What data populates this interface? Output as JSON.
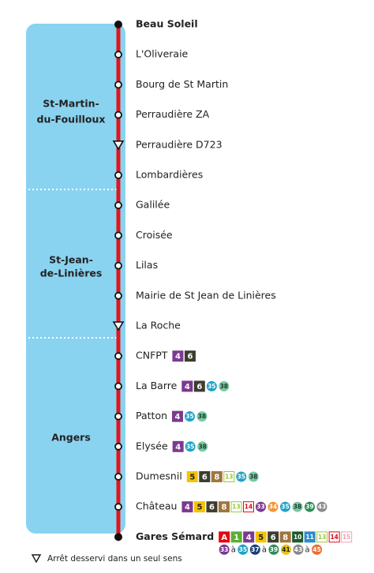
{
  "zones": [
    {
      "lines": [
        "St-Martin-",
        "du-Fouilloux"
      ]
    },
    {
      "lines": [
        "St-Jean-",
        "de-Linières"
      ]
    },
    {
      "lines": [
        "Angers"
      ]
    }
  ],
  "stops": [
    {
      "name": "Beau Soleil",
      "marker": "terminus",
      "bold": true,
      "connections": []
    },
    {
      "name": "L'Oliveraie",
      "marker": "stop",
      "connections": []
    },
    {
      "name": "Bourg de St Martin",
      "marker": "stop",
      "connections": []
    },
    {
      "name": "Perraudière ZA",
      "marker": "stop",
      "connections": []
    },
    {
      "name": "Perraudière D723",
      "marker": "oneway",
      "connections": []
    },
    {
      "name": "Lombardières",
      "marker": "stop",
      "connections": []
    },
    {
      "name": "Galilée",
      "marker": "stop",
      "connections": []
    },
    {
      "name": "Croisée",
      "marker": "stop",
      "connections": []
    },
    {
      "name": "Lilas",
      "marker": "stop",
      "connections": []
    },
    {
      "name": "Mairie de St Jean de Linières",
      "marker": "stop",
      "connections": []
    },
    {
      "name": "La Roche",
      "marker": "oneway",
      "connections": []
    },
    {
      "name": "CNFPT",
      "marker": "stop",
      "connections": [
        [
          {
            "label": "4",
            "shape": "square",
            "color": "#7a3a8f"
          },
          {
            "label": "6",
            "shape": "square",
            "color": "#3d3d2f"
          }
        ]
      ]
    },
    {
      "name": "La Barre",
      "marker": "stop",
      "connections": [
        [
          {
            "label": "4",
            "shape": "square",
            "color": "#7a3a8f"
          },
          {
            "label": "6",
            "shape": "square",
            "color": "#3d3d2f"
          },
          {
            "label": "35",
            "shape": "circle",
            "color": "#1fa3c8"
          },
          {
            "label": "38",
            "shape": "circle",
            "color": "#7bc8a4",
            "text_color": "#1e3a2e"
          }
        ]
      ]
    },
    {
      "name": "Patton",
      "marker": "stop",
      "connections": [
        [
          {
            "label": "4",
            "shape": "square",
            "color": "#7a3a8f"
          },
          {
            "label": "35",
            "shape": "circle",
            "color": "#1fa3c8"
          },
          {
            "label": "38",
            "shape": "circle",
            "color": "#7bc8a4",
            "text_color": "#1e3a2e"
          }
        ]
      ]
    },
    {
      "name": "Elysée",
      "marker": "stop",
      "connections": [
        [
          {
            "label": "4",
            "shape": "square",
            "color": "#7a3a8f"
          },
          {
            "label": "35",
            "shape": "circle",
            "color": "#1fa3c8"
          },
          {
            "label": "38",
            "shape": "circle",
            "color": "#7bc8a4",
            "text_color": "#1e3a2e"
          }
        ]
      ]
    },
    {
      "name": "Dumesnil",
      "marker": "stop",
      "connections": [
        [
          {
            "label": "5",
            "shape": "square",
            "color": "#f5c400",
            "text_color": "#222"
          },
          {
            "label": "6",
            "shape": "square",
            "color": "#3d3d2f"
          },
          {
            "label": "8",
            "shape": "square",
            "color": "#a0753c"
          },
          {
            "label": "13",
            "shape": "outline",
            "color": "#9bc53d"
          },
          {
            "label": "35",
            "shape": "circle",
            "color": "#1fa3c8"
          },
          {
            "label": "38",
            "shape": "circle",
            "color": "#7bc8a4",
            "text_color": "#1e3a2e"
          }
        ]
      ]
    },
    {
      "name": "Château",
      "marker": "stop",
      "connections": [
        [
          {
            "label": "4",
            "shape": "square",
            "color": "#7a3a8f"
          },
          {
            "label": "5",
            "shape": "square",
            "color": "#f5c400",
            "text_color": "#222"
          },
          {
            "label": "6",
            "shape": "square",
            "color": "#3d3d2f"
          },
          {
            "label": "8",
            "shape": "square",
            "color": "#a0753c"
          },
          {
            "label": "13",
            "shape": "outline",
            "color": "#9bc53d"
          },
          {
            "label": "14",
            "shape": "outline",
            "color": "#e30613"
          },
          {
            "label": "33",
            "shape": "circle",
            "color": "#7a3a8f"
          },
          {
            "label": "34",
            "shape": "circle",
            "color": "#f29433"
          },
          {
            "label": "35",
            "shape": "circle",
            "color": "#1fa3c8"
          },
          {
            "label": "38",
            "shape": "circle",
            "color": "#7bc8a4",
            "text_color": "#1e3a2e"
          },
          {
            "label": "39",
            "shape": "circle",
            "color": "#2e8b57"
          },
          {
            "label": "43",
            "shape": "circle",
            "color": "#8a8a8a"
          }
        ]
      ]
    },
    {
      "name": "Gares Sémard",
      "marker": "terminus",
      "bold": true,
      "connections": [
        [
          {
            "label": "A",
            "shape": "square",
            "color": "#e30613"
          },
          {
            "label": "1",
            "shape": "square",
            "color": "#5aae32"
          },
          {
            "label": "4",
            "shape": "square",
            "color": "#7a3a8f"
          },
          {
            "label": "5",
            "shape": "square",
            "color": "#f5c400",
            "text_color": "#222"
          },
          {
            "label": "6",
            "shape": "square",
            "color": "#3d3d2f"
          },
          {
            "label": "8",
            "shape": "square",
            "color": "#a0753c"
          },
          {
            "label": "10",
            "shape": "square",
            "color": "#1e5a2b"
          },
          {
            "label": "11",
            "shape": "square",
            "color": "#2a8ccd"
          },
          {
            "label": "13",
            "shape": "outline",
            "color": "#9bc53d"
          },
          {
            "label": "14",
            "shape": "outline",
            "color": "#e30613"
          },
          {
            "label": "15",
            "shape": "outline",
            "color": "#f29fb0"
          }
        ],
        [
          {
            "label": "33",
            "shape": "circle",
            "color": "#7a3a8f"
          },
          {
            "label": "à",
            "shape": "text"
          },
          {
            "label": "35",
            "shape": "circle",
            "color": "#1fa3c8"
          },
          {
            "label": "37",
            "shape": "circle",
            "color": "#1b3d7a"
          },
          {
            "label": "à",
            "shape": "text"
          },
          {
            "label": "39",
            "shape": "circle",
            "color": "#2e8b57"
          },
          {
            "label": "41",
            "shape": "circle",
            "color": "#e9c31a",
            "text_color": "#222"
          },
          {
            "label": "43",
            "shape": "circle",
            "color": "#8a8a8a"
          },
          {
            "label": "à",
            "shape": "text"
          },
          {
            "label": "45",
            "shape": "circle",
            "color": "#ef6b2b"
          }
        ]
      ]
    }
  ],
  "legend": {
    "text": "Arrêt desservi dans un seul sens"
  }
}
